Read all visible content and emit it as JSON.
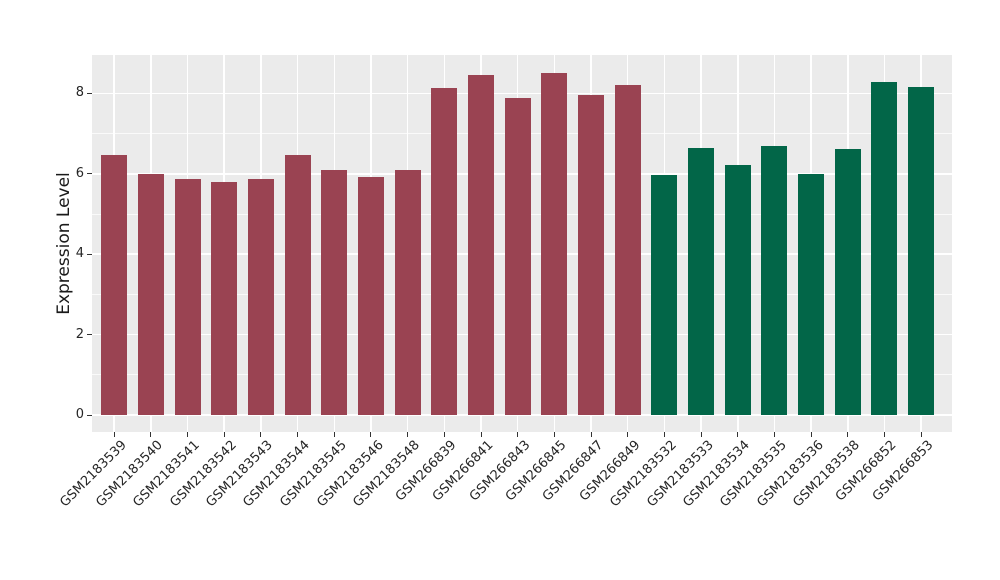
{
  "chart_data": {
    "type": "bar",
    "title": "",
    "xlabel": "",
    "ylabel": "Expression Level",
    "categories": [
      "GSM2183539",
      "GSM2183540",
      "GSM2183541",
      "GSM2183542",
      "GSM2183543",
      "GSM2183544",
      "GSM2183545",
      "GSM2183546",
      "GSM2183548",
      "GSM266839",
      "GSM266841",
      "GSM266843",
      "GSM266845",
      "GSM266847",
      "GSM266849",
      "GSM2183532",
      "GSM2183533",
      "GSM2183534",
      "GSM2183535",
      "GSM2183536",
      "GSM2183538",
      "GSM266852",
      "GSM266853"
    ],
    "values": [
      6.48,
      6.0,
      5.88,
      5.8,
      5.88,
      6.48,
      6.1,
      5.92,
      6.1,
      8.13,
      8.45,
      7.89,
      8.5,
      7.97,
      8.22,
      5.97,
      6.63,
      6.22,
      6.7,
      6.0,
      6.62,
      8.28,
      8.15
    ],
    "bar_group": [
      "group1",
      "group1",
      "group1",
      "group1",
      "group1",
      "group1",
      "group1",
      "group1",
      "group1",
      "group1",
      "group1",
      "group1",
      "group1",
      "group1",
      "group1",
      "group2",
      "group2",
      "group2",
      "group2",
      "group2",
      "group2",
      "group2",
      "group2"
    ],
    "group_colors": {
      "group1": "#9A4352",
      "group2": "#026648"
    },
    "yticks": [
      0,
      2,
      4,
      6,
      8
    ],
    "yticks_minor": [
      1,
      3,
      5,
      7
    ],
    "ylim": [
      -0.42,
      8.95
    ],
    "x_tick_rotation_deg": 45,
    "grid": "white major and minor gridlines on gray panel",
    "legend": "none",
    "colors": {
      "panel_bg": "#EBEBEB",
      "grid": "#FFFFFF",
      "text": "#262626"
    }
  }
}
